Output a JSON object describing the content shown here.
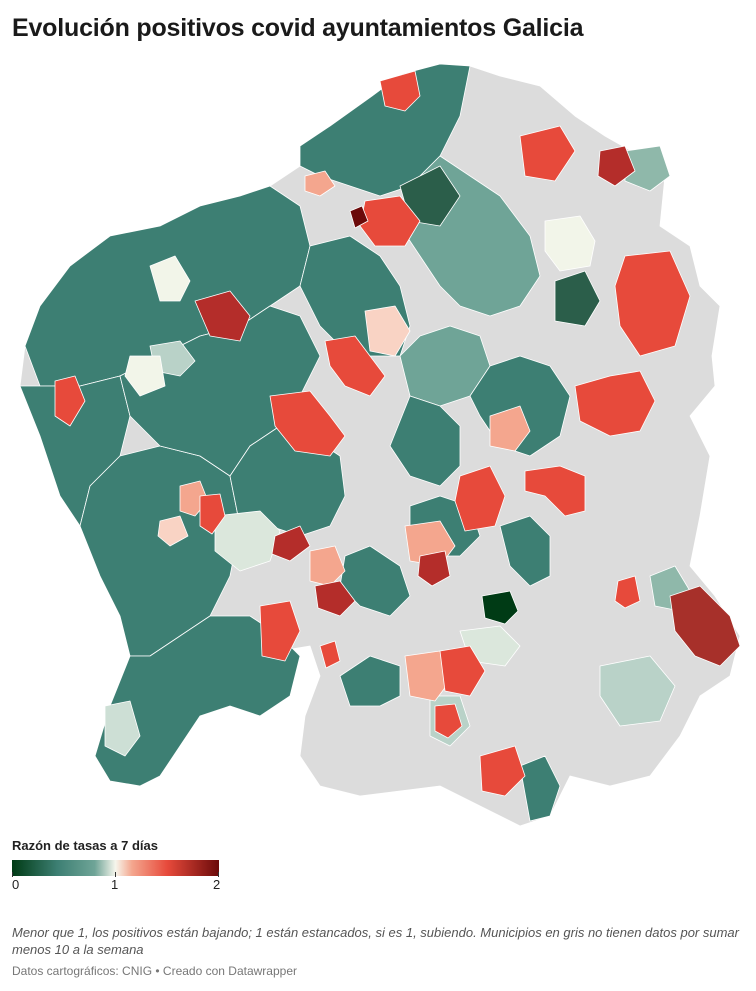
{
  "header": {
    "title": "Evolución positivos covid ayuntamientos Galicia"
  },
  "legend": {
    "title": "Razón de tasas a 7 días",
    "ticks": [
      "0",
      "1",
      "2"
    ],
    "scale": {
      "min": 0,
      "mid": 1,
      "max": 2
    },
    "colors": {
      "low": "#003b15",
      "mid": "#f6f6ec",
      "high": "#6b0a0a",
      "nodata": "#dcdcdc"
    }
  },
  "notes": {
    "description": "Menor que 1, los positivos están bajando; 1 están estancados, si es 1, subiendo. Municipios en gris no tienen datos por sumar menos 10 a la semana",
    "credit": "Datos cartográficos: CNIG • Creado con Datawrapper"
  }
}
